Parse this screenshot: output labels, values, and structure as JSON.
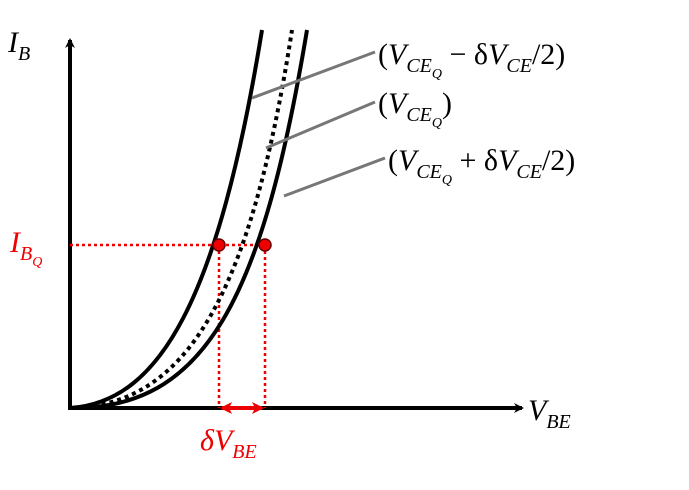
{
  "axes": {
    "y_label": [
      "I",
      "B"
    ],
    "x_label": [
      "V",
      "BE"
    ]
  },
  "curves": [
    {
      "label": [
        "(",
        "V",
        "CE",
        "Q",
        " − δ",
        "V",
        "CE",
        "/2)"
      ]
    },
    {
      "label": [
        "(",
        "V",
        "CE",
        "Q",
        ")"
      ]
    },
    {
      "label": [
        "(",
        "V",
        "CE",
        "Q",
        " + δ",
        "V",
        "CE",
        "/2)"
      ]
    }
  ],
  "operating_point": {
    "current_label": [
      "I",
      "B",
      "Q"
    ],
    "delta_label": [
      "δ",
      "V",
      "BE"
    ]
  }
}
